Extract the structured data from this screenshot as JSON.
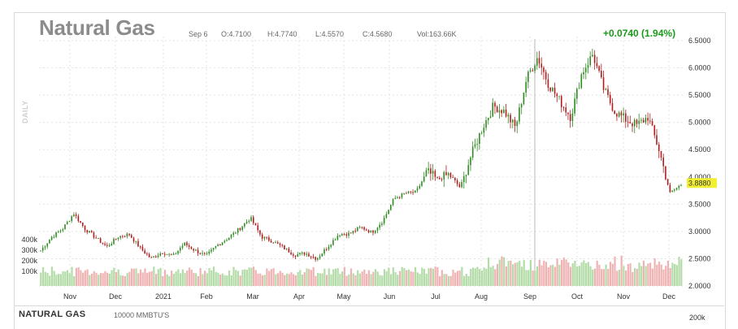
{
  "header": {
    "title": "Natural Gas",
    "date": "Sep 6",
    "open": "O:4.7100",
    "high": "H:4.7740",
    "low": "L:4.5570",
    "close": "C:4.5680",
    "volume": "Vol:163.66K",
    "change": "+0.0740 (1.94%)",
    "interval": "DAILY"
  },
  "footer": {
    "name": "NATURAL GAS",
    "unit": "10000 MMBTU'S",
    "volume_tick": "200k"
  },
  "colors": {
    "up": "#2e8b22",
    "down": "#b01c1c",
    "vol_up": "#b3dca8",
    "vol_down": "#f0b3b3",
    "last_price_bg": "#f2ef33",
    "change_text": "#1a9a1a"
  },
  "chart_data": {
    "type": "candlestick",
    "x_ticks": [
      "Nov",
      "Dec",
      "2021",
      "Feb",
      "Mar",
      "Apr",
      "May",
      "Jun",
      "Jul",
      "Aug",
      "Sep",
      "Oct",
      "Nov",
      "Dec"
    ],
    "y_ticks": [
      "2.0000",
      "2.5000",
      "3.0000",
      "3.5000",
      "4.0000",
      "4.5000",
      "5.0000",
      "5.5000",
      "6.0000",
      "6.5000"
    ],
    "ylim": [
      2.0,
      6.6
    ],
    "last_price": "3.8880",
    "volume_ticks": [
      "100k",
      "200k",
      "300k",
      "400k"
    ],
    "grid": true,
    "anchors": [
      {
        "m": "Oct 1",
        "v": 2.65
      },
      {
        "m": "Oct 10",
        "v": 2.9
      },
      {
        "m": "Oct 20",
        "v": 3.05
      },
      {
        "m": "Oct 28",
        "v": 3.33
      },
      {
        "m": "Nov 5",
        "v": 3.05
      },
      {
        "m": "Nov 12",
        "v": 2.88
      },
      {
        "m": "Nov 20",
        "v": 2.72
      },
      {
        "m": "Nov 27",
        "v": 2.9
      },
      {
        "m": "Dec 3",
        "v": 2.95
      },
      {
        "m": "Dec 10",
        "v": 2.7
      },
      {
        "m": "Dec 15",
        "v": 2.5
      },
      {
        "m": "Dec 22",
        "v": 2.62
      },
      {
        "m": "Dec 31",
        "v": 2.55
      },
      {
        "m": "Jan 7",
        "v": 2.78
      },
      {
        "m": "Jan 13",
        "v": 2.65
      },
      {
        "m": "Jan 20",
        "v": 2.55
      },
      {
        "m": "Jan 27",
        "v": 2.75
      },
      {
        "m": "Feb 5",
        "v": 2.88
      },
      {
        "m": "Feb 12",
        "v": 3.05
      },
      {
        "m": "Feb 17",
        "v": 3.25
      },
      {
        "m": "Feb 22",
        "v": 2.9
      },
      {
        "m": "Mar 3",
        "v": 2.82
      },
      {
        "m": "Mar 10",
        "v": 2.7
      },
      {
        "m": "Mar 20",
        "v": 2.57
      },
      {
        "m": "Apr 1",
        "v": 2.6
      },
      {
        "m": "Apr 8",
        "v": 2.5
      },
      {
        "m": "Apr 20",
        "v": 2.72
      },
      {
        "m": "May 3",
        "v": 2.95
      },
      {
        "m": "May 17",
        "v": 2.96
      },
      {
        "m": "Jun 1",
        "v": 3.08
      },
      {
        "m": "Jun 8",
        "v": 2.98
      },
      {
        "m": "Jun 22",
        "v": 3.2
      },
      {
        "m": "Jul 2",
        "v": 3.6
      },
      {
        "m": "Jul 10",
        "v": 3.7
      },
      {
        "m": "Jul 25",
        "v": 3.72
      },
      {
        "m": "Aug 5",
        "v": 4.1
      },
      {
        "m": "Aug 12",
        "v": 3.95
      },
      {
        "m": "Aug 20",
        "v": 4.05
      },
      {
        "m": "Aug 27",
        "v": 3.8
      },
      {
        "m": "Sep 3",
        "v": 4.4
      },
      {
        "m": "Sep 10",
        "v": 4.9
      },
      {
        "m": "Sep 17",
        "v": 5.3
      },
      {
        "m": "Sep 22",
        "v": 5.2
      },
      {
        "m": "Sep 28",
        "v": 4.9
      },
      {
        "m": "Oct 1",
        "v": 5.8
      },
      {
        "m": "Oct 6",
        "v": 6.2
      },
      {
        "m": "Oct 10",
        "v": 5.7
      },
      {
        "m": "Oct 14",
        "v": 5.4
      },
      {
        "m": "Oct 22",
        "v": 5.1
      },
      {
        "m": "Oct 27",
        "v": 5.9
      },
      {
        "m": "Oct 31",
        "v": 6.25
      },
      {
        "m": "Nov 7",
        "v": 5.6
      },
      {
        "m": "Nov 12",
        "v": 5.2
      },
      {
        "m": "Nov 18",
        "v": 5.05
      },
      {
        "m": "Nov 25",
        "v": 4.95
      },
      {
        "m": "Dec 1",
        "v": 5.1
      },
      {
        "m": "Dec 4",
        "v": 4.5
      },
      {
        "m": "Dec 7",
        "v": 3.7
      },
      {
        "m": "Dec 10",
        "v": 3.86
      }
    ]
  }
}
